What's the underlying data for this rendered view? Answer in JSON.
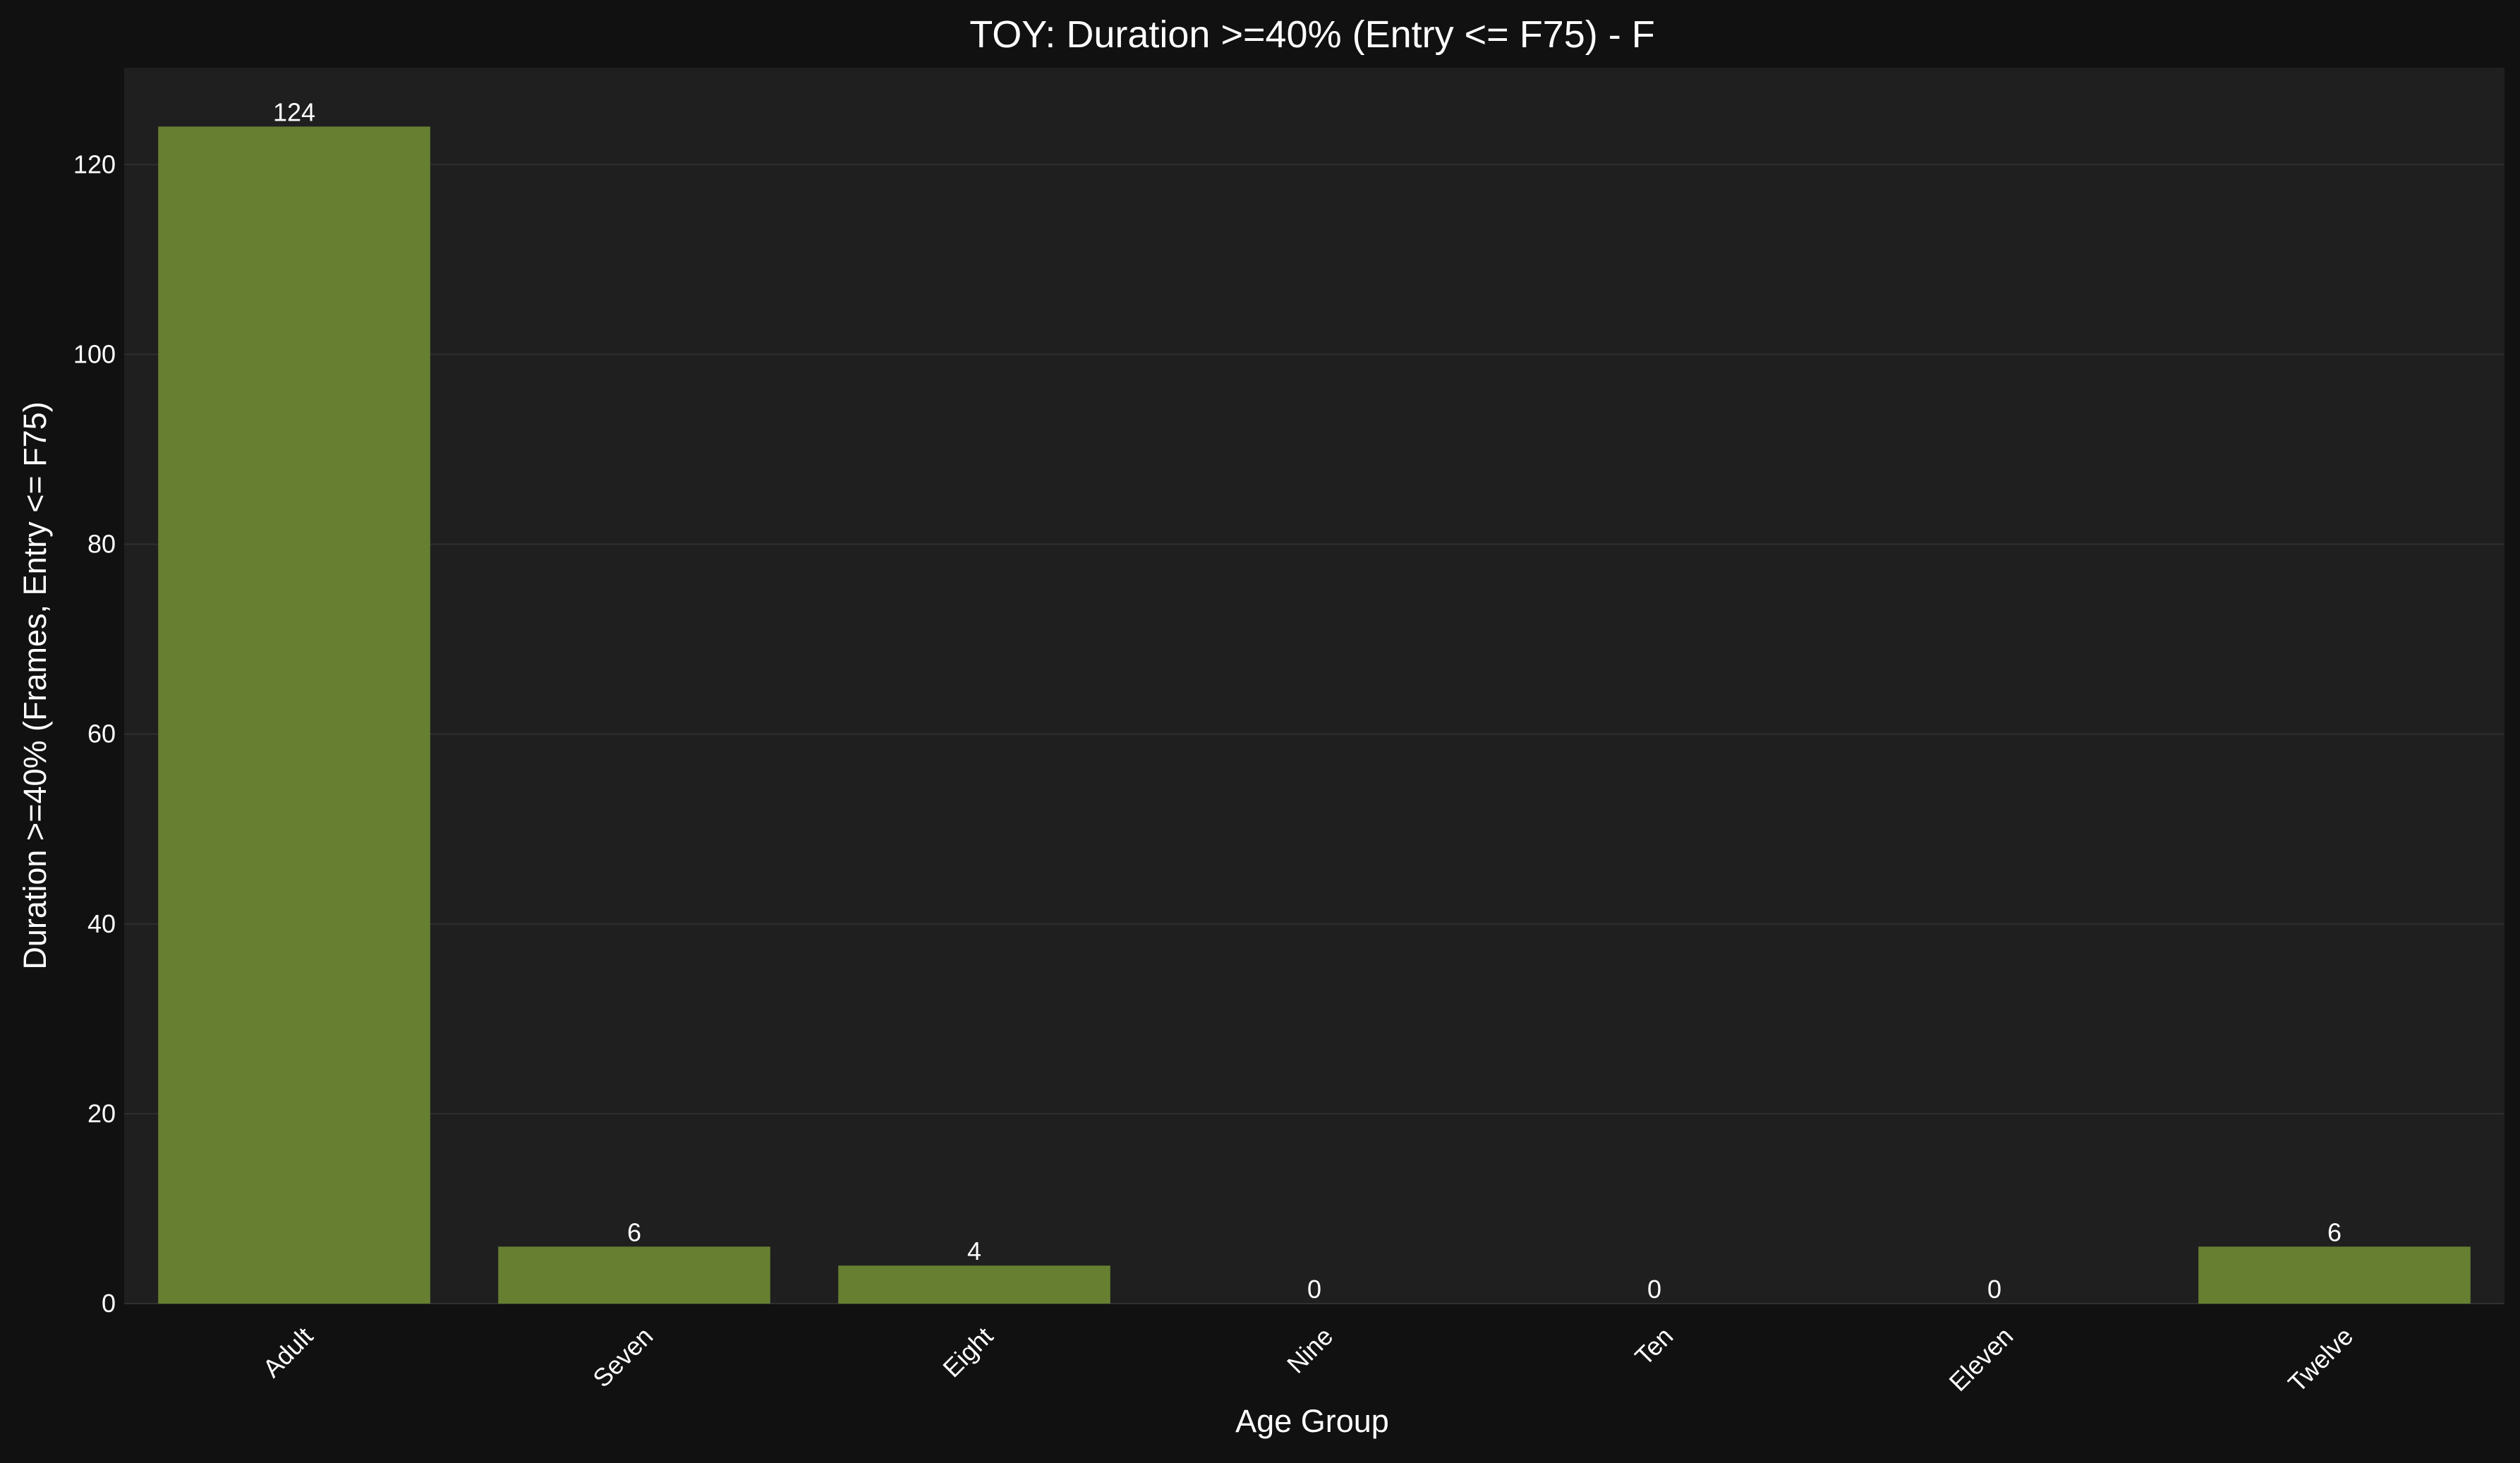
{
  "chart_data": {
    "type": "bar",
    "title": "TOY: Duration >=40% (Entry <= F75) - F",
    "xlabel": "Age Group",
    "ylabel": "Duration >=40% (Frames, Entry <= F75)",
    "categories": [
      "Adult",
      "Seven",
      "Eight",
      "Nine",
      "Ten",
      "Eleven",
      "Twelve"
    ],
    "values": [
      124,
      6,
      4,
      0,
      0,
      0,
      6
    ],
    "data_labels": [
      "124",
      "6",
      "4",
      "0",
      "0",
      "0",
      "6"
    ],
    "y_ticks": [
      0,
      20,
      40,
      60,
      80,
      100,
      120
    ],
    "y_tick_labels": [
      "0",
      "20",
      "40",
      "60",
      "80",
      "100",
      "120"
    ],
    "ylim": [
      0,
      130.2
    ],
    "grid": true,
    "legend": "none"
  },
  "colors": {
    "page_background": "#111111",
    "plot_background": "#1f1f1f",
    "bar": "#677f31",
    "gridline": "#2f2f2f",
    "text": "#ffffff"
  }
}
